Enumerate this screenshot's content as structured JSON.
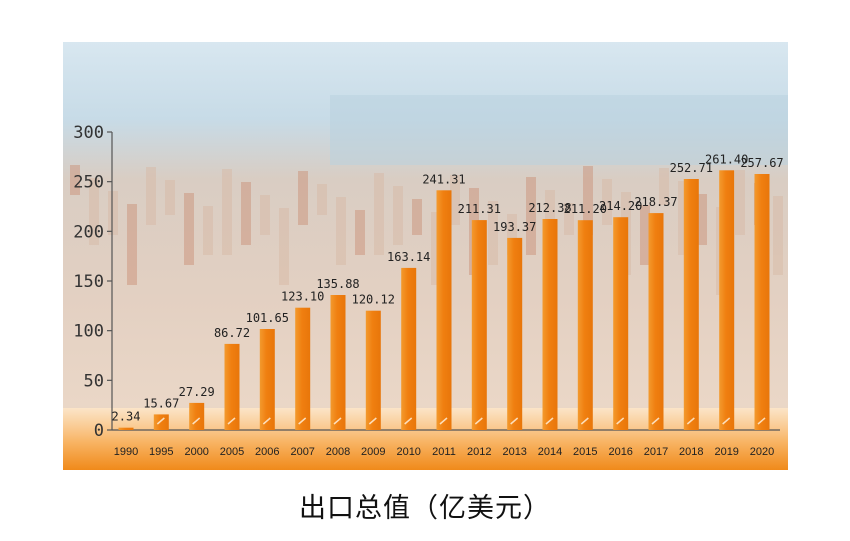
{
  "caption": "出口总值（亿美元）",
  "colors": {
    "bar": "#f08a1a",
    "bar_light": "#fbbd6c",
    "axis": "#555555",
    "sky": "#cfe1ec",
    "sea": "#9dbed1",
    "port": "#e0c6b0",
    "bottom_band": "#f5a24a",
    "frame": "#f0a040"
  },
  "chart_data": {
    "type": "bar",
    "title": "",
    "xlabel": "",
    "ylabel": "",
    "ylim": [
      0,
      300
    ],
    "yticks": [
      0,
      50,
      100,
      150,
      200,
      250,
      300
    ],
    "grid": false,
    "categories": [
      "1990",
      "1995",
      "2000",
      "2005",
      "2006",
      "2007",
      "2008",
      "2009",
      "2010",
      "2011",
      "2012",
      "2013",
      "2014",
      "2015",
      "2016",
      "2017",
      "2018",
      "2019",
      "2020"
    ],
    "values": [
      2.34,
      15.67,
      27.29,
      86.72,
      101.65,
      123.1,
      135.88,
      120.12,
      163.14,
      241.31,
      211.31,
      193.37,
      212.38,
      211.2,
      214.2,
      218.37,
      252.71,
      261.4,
      257.67
    ],
    "value_labels": [
      "2.34",
      "15.67",
      "27.29",
      "86.72",
      "101.65",
      "123.10",
      "135.88",
      "120.12",
      "163.14",
      "241.31",
      "211.31",
      "193.37",
      "212.38",
      "211.20",
      "214.20",
      "218.37",
      "252.71",
      "261.40",
      "257.67"
    ]
  }
}
